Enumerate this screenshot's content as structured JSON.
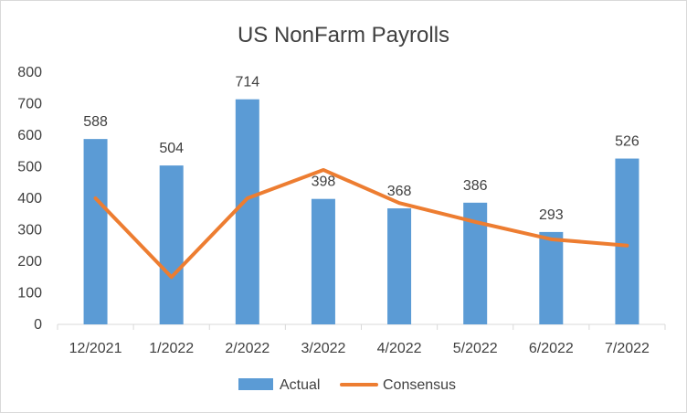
{
  "chart_data": {
    "type": "bar",
    "title": "US NonFarm Payrolls",
    "categories": [
      "12/2021",
      "1/2022",
      "2/2022",
      "3/2022",
      "4/2022",
      "5/2022",
      "6/2022",
      "7/2022"
    ],
    "series": [
      {
        "name": "Actual",
        "type": "bar",
        "color": "#5b9bd5",
        "values": [
          588,
          504,
          714,
          398,
          368,
          386,
          293,
          526
        ],
        "data_labels": true
      },
      {
        "name": "Consensus",
        "type": "line",
        "color": "#ed7d31",
        "values": [
          400,
          150,
          400,
          490,
          385,
          325,
          270,
          250
        ]
      }
    ],
    "ylim": [
      0,
      800
    ],
    "yticks": [
      0,
      100,
      200,
      300,
      400,
      500,
      600,
      700,
      800
    ],
    "grid": false,
    "legend": "bottom"
  }
}
